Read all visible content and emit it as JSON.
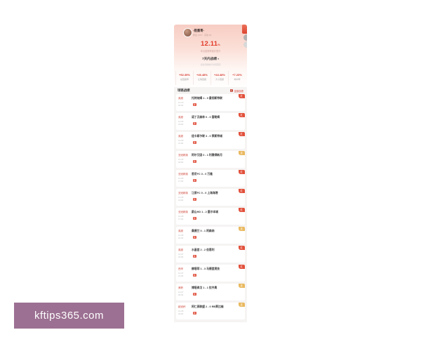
{
  "watermark": {
    "text": "kftips365.com",
    "bg_color": "#9c7092",
    "text_color": "#ffffff"
  },
  "profile": {
    "name": "-稳重哥-",
    "meta": "粉丝 1257 · 获赞 86",
    "big_value": "12.11",
    "big_unit": "%",
    "big_caption": "本月回报率稳步提升",
    "period_label": "7天内战绩",
    "period_arrow": "▾",
    "period_caption": "点击切换统计时间范围",
    "accent_color": "#e23b2a",
    "stats": [
      {
        "value": "+52.39%",
        "label": "总回报率"
      },
      {
        "value": "+46.48%",
        "label": "让球回报"
      },
      {
        "value": "+44.48%",
        "label": "大小回报"
      },
      {
        "value": "+7.23%",
        "label": "命中率"
      }
    ]
  },
  "record": {
    "title": "球路战绩",
    "more_label": "全部战绩",
    "hot_icon_glyph": "红",
    "pick_icon_glyph": "荐",
    "win_color": "#e2503b",
    "push_color": "#e9b95f",
    "rows": [
      {
        "league": "英超",
        "date": "12-10",
        "time": "04:00",
        "match": "托特纳姆 1 - 0 曼彻斯特联",
        "result": "红",
        "result_type": "win"
      },
      {
        "league": "英超",
        "date": "12-09",
        "time": "23:00",
        "match": "诺丁汉森林 0 - 0 富勒姆",
        "result": "红",
        "result_type": "win"
      },
      {
        "league": "英超",
        "date": "12-09",
        "time": "21:00",
        "match": "纽卡斯尔联 3 - 0 莱斯特城",
        "result": "红",
        "result_type": "win"
      },
      {
        "league": "亚冠精英",
        "date": "12-09",
        "time": "18:00",
        "match": "阿尔艾因 0 - 1 利雅得新月",
        "result": "走",
        "result_type": "push"
      },
      {
        "league": "亚冠精英",
        "date": "12-09",
        "time": "17:00",
        "match": "悉尼FC 3 - 0 万隆",
        "result": "红",
        "result_type": "win"
      },
      {
        "league": "亚冠精英",
        "date": "12-08",
        "time": "19:00",
        "match": "江原FC 0 - 0 上海海港",
        "result": "红",
        "result_type": "win"
      },
      {
        "league": "亚冠精英",
        "date": "12-08",
        "time": "17:00",
        "match": "蔚山HD 1 - 2 墨尔本城",
        "result": "红",
        "result_type": "win"
      },
      {
        "league": "英超",
        "date": "12-08",
        "time": "01:30",
        "match": "桑德兰 0 - 1 阿森纳",
        "result": "走",
        "result_type": "push"
      },
      {
        "league": "英超",
        "date": "12-07",
        "time": "23:00",
        "match": "水晶宫 2 - 2 伯恩利",
        "result": "红",
        "result_type": "win"
      },
      {
        "league": "西甲",
        "date": "12-07",
        "time": "21:00",
        "match": "赫塔菲 1 - 3 马德里竞技",
        "result": "红",
        "result_type": "win"
      },
      {
        "league": "美职",
        "date": "12-07",
        "time": "04:00",
        "match": "博塔弗戈 1 - 1 拉齐奥",
        "result": "走",
        "result_type": "push"
      },
      {
        "league": "欧冠杯",
        "date": "12-06",
        "time": "23:00",
        "match": "阿仁高联盟 2 - 0 RB莱比锡",
        "result": "走",
        "result_type": "push"
      }
    ]
  }
}
